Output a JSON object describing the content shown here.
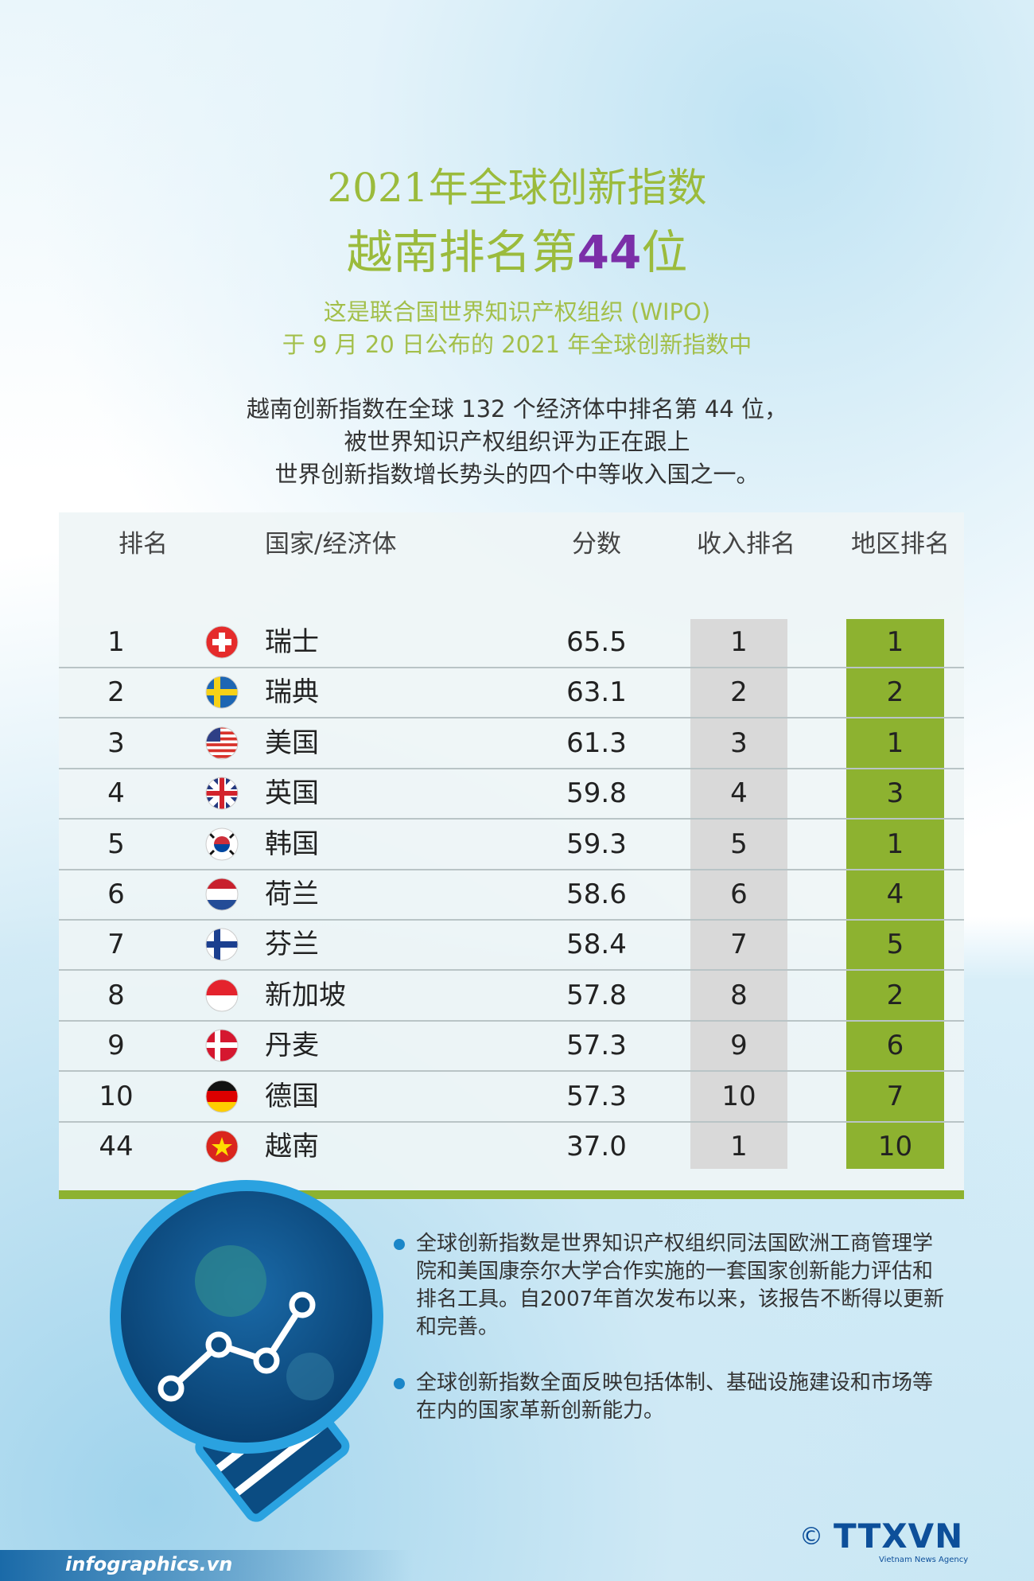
{
  "header": {
    "title_line1": "2021年全球创新指数",
    "title_line2": {
      "before": "越南排名第",
      "highlight": "44",
      "after": "位"
    },
    "subtitle": [
      "这是联合国世界知识产权组织 (WIPO)",
      "于 9 月 20 日公布的 2021 年全球创新指数中"
    ]
  },
  "intro": [
    "越南创新指数在全球 132 个经济体中排名第 44 位，",
    "被世界知识产权组织评为正在跟上",
    "世界创新指数增长势头的四个中等收入国之一。"
  ],
  "table": {
    "columns": [
      "排名",
      "国家/经济体",
      "分数",
      "收入排名",
      "地区排名"
    ],
    "rows": [
      [
        "1",
        "瑞士",
        "65.5",
        "1",
        "1"
      ],
      [
        "2",
        "瑞典",
        "63.1",
        "2",
        "2"
      ],
      [
        "3",
        "美国",
        "61.3",
        "3",
        "1"
      ],
      [
        "4",
        "英国",
        "59.8",
        "4",
        "3"
      ],
      [
        "5",
        "韩国",
        "59.3",
        "5",
        "1"
      ],
      [
        "6",
        "荷兰",
        "58.6",
        "6",
        "4"
      ],
      [
        "7",
        "芬兰",
        "58.4",
        "7",
        "5"
      ],
      [
        "8",
        "新加坡",
        "57.8",
        "8",
        "2"
      ],
      [
        "9",
        "丹麦",
        "57.3",
        "9",
        "6"
      ],
      [
        "10",
        "德国",
        "57.3",
        "10",
        "7"
      ],
      [
        "44",
        "越南",
        "37.0",
        "1",
        "10"
      ]
    ]
  },
  "notes": [
    "全球创新指数是世界知识产权组织同法国欧洲工商管理学院和美国康奈尔大学合作实施的一套国家创新能力评估和排名工具。自2007年首次发布以来，该报告不断得以更新和完善。",
    "全球创新指数全面反映包括体制、基础设施建设和市场等在内的国家革新创新能力。"
  ],
  "footer": {
    "source": "infographics.vn",
    "copyright": "©",
    "agency": "TTXVN",
    "agency_en": "Vietnam News Agency"
  }
}
